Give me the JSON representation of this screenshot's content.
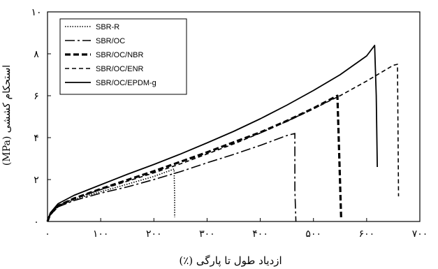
{
  "chart_data": {
    "type": "line",
    "title": "",
    "xlabel": "ازدیاد طول تا پارگی (٪)",
    "ylabel": "استحکام کششی (MPa)",
    "xlim": [
      0,
      700
    ],
    "ylim": [
      0,
      10
    ],
    "x_ticks": [
      0,
      100,
      200,
      300,
      400,
      500,
      600,
      700
    ],
    "y_ticks": [
      0,
      2,
      4,
      6,
      8,
      10
    ],
    "x_tick_labels": [
      "۰",
      "۱۰۰",
      "۲۰۰",
      "۳۰۰",
      "۴۰۰",
      "۵۰۰",
      "۶۰۰",
      "۷۰۰"
    ],
    "y_tick_labels": [
      "۰",
      "۲",
      "۴",
      "۶",
      "۸",
      "۱۰"
    ],
    "grid": false,
    "legend_position": "top-left",
    "series": [
      {
        "name": "SBR-R",
        "dash": "dotted",
        "stroke_width": 1.6,
        "x": [
          0,
          5,
          20,
          50,
          100,
          150,
          200,
          238,
          239,
          239
        ],
        "y": [
          0,
          0.3,
          0.7,
          1.05,
          1.42,
          1.78,
          2.15,
          2.5,
          1.2,
          0.2
        ]
      },
      {
        "name": "SBR/OC",
        "dash": "longdashdot",
        "stroke_width": 1.6,
        "x": [
          0,
          5,
          20,
          50,
          100,
          150,
          200,
          250,
          300,
          350,
          400,
          450,
          465,
          465,
          467
        ],
        "y": [
          0,
          0.3,
          0.7,
          1.0,
          1.35,
          1.65,
          2.0,
          2.38,
          2.8,
          3.2,
          3.63,
          4.1,
          4.2,
          1.5,
          0
        ]
      },
      {
        "name": "SBR/OC/NBR",
        "dash": "dashed-bold",
        "stroke_width": 3.2,
        "x": [
          0,
          5,
          20,
          50,
          100,
          150,
          200,
          250,
          300,
          350,
          400,
          450,
          500,
          545,
          548,
          552
        ],
        "y": [
          0,
          0.35,
          0.75,
          1.1,
          1.55,
          1.98,
          2.4,
          2.85,
          3.3,
          3.78,
          4.25,
          4.8,
          5.4,
          6.0,
          3.5,
          0.2
        ]
      },
      {
        "name": "SBR/OC/ENR",
        "dash": "dashed",
        "stroke_width": 1.6,
        "x": [
          0,
          5,
          20,
          50,
          100,
          150,
          200,
          250,
          300,
          350,
          400,
          450,
          500,
          550,
          600,
          650,
          658,
          660
        ],
        "y": [
          0,
          0.35,
          0.75,
          1.1,
          1.52,
          1.92,
          2.32,
          2.75,
          3.22,
          3.7,
          4.22,
          4.78,
          5.38,
          6.0,
          6.7,
          7.45,
          7.5,
          1.2
        ]
      },
      {
        "name": "SBR/OC/EPDM-g",
        "dash": "solid",
        "stroke_width": 1.8,
        "x": [
          0,
          5,
          20,
          50,
          100,
          150,
          200,
          250,
          300,
          350,
          400,
          450,
          500,
          550,
          600,
          615,
          618,
          620
        ],
        "y": [
          0,
          0.4,
          0.85,
          1.25,
          1.75,
          2.25,
          2.72,
          3.22,
          3.75,
          4.3,
          4.9,
          5.55,
          6.25,
          7.0,
          7.9,
          8.4,
          6.0,
          2.6
        ]
      }
    ]
  }
}
